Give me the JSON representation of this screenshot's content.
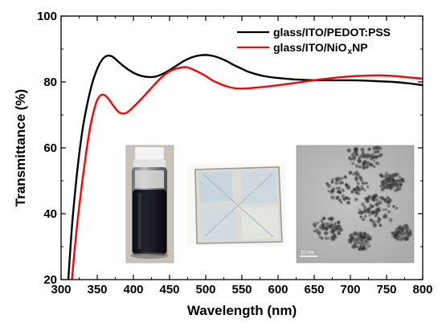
{
  "chart_data": {
    "type": "line",
    "xlabel": "Wavelength (nm)",
    "ylabel": "Transmittance (%)",
    "xlim": [
      300,
      800
    ],
    "ylim": [
      20,
      100
    ],
    "xticks": [
      300,
      350,
      400,
      450,
      500,
      550,
      600,
      650,
      700,
      750,
      800
    ],
    "yticks": [
      20,
      40,
      60,
      80,
      100
    ],
    "grid": false,
    "legend_position": "top-right",
    "series": [
      {
        "name": "glass/ITO/PEDOT:PSS",
        "color": "#000000",
        "x": [
          310,
          315,
          320,
          325,
          330,
          335,
          340,
          345,
          350,
          355,
          360,
          365,
          370,
          375,
          380,
          390,
          400,
          410,
          420,
          430,
          440,
          450,
          460,
          470,
          480,
          490,
          500,
          510,
          520,
          530,
          540,
          550,
          560,
          580,
          600,
          620,
          640,
          660,
          680,
          700,
          720,
          740,
          760,
          780,
          800
        ],
        "y": [
          20,
          36,
          48,
          58,
          66,
          72,
          77,
          81,
          84,
          86.2,
          87.5,
          88,
          87.8,
          87,
          86,
          84.2,
          82.8,
          81.9,
          81.5,
          81.6,
          82.4,
          83.6,
          85,
          86.4,
          87.4,
          88,
          88.2,
          87.9,
          87.2,
          86.2,
          85,
          84,
          83,
          81.8,
          81.2,
          80.8,
          80.6,
          80.5,
          80.5,
          80.5,
          80.4,
          80.2,
          80,
          79.6,
          79
        ]
      },
      {
        "name": "glass/ITO/NiO xNP",
        "color": "#ff0000",
        "x": [
          315,
          320,
          325,
          330,
          335,
          340,
          345,
          350,
          355,
          360,
          365,
          370,
          375,
          380,
          385,
          390,
          395,
          400,
          410,
          420,
          430,
          440,
          450,
          460,
          470,
          475,
          480,
          490,
          500,
          510,
          520,
          530,
          540,
          550,
          560,
          580,
          600,
          620,
          640,
          660,
          680,
          700,
          720,
          740,
          760,
          780,
          800
        ],
        "y": [
          20,
          32,
          42,
          51,
          59,
          66,
          71,
          74.5,
          76,
          76,
          75,
          73.5,
          72,
          70.8,
          70.4,
          70.6,
          71.4,
          72.4,
          74.6,
          77,
          79.4,
          81.6,
          83.2,
          84.1,
          84.5,
          84.4,
          84,
          83,
          81.8,
          80.4,
          79.4,
          78.6,
          78.1,
          78,
          78.1,
          78.5,
          79,
          79.6,
          80.2,
          80.8,
          81.3,
          81.7,
          81.9,
          82,
          81.8,
          81.4,
          81
        ]
      }
    ],
    "legend": {
      "entries": [
        {
          "main": "glass/ITO/PEDOT:PSS",
          "sub": "",
          "tail": "",
          "color": "#000000"
        },
        {
          "main": "glass/ITO/NiO",
          "sub": "x",
          "tail": "NP",
          "color": "#ff0000"
        }
      ]
    },
    "inset_images": [
      {
        "subject": "vial of dark NiOx nanoparticle dispersion"
      },
      {
        "subject": "NiOx-coated glass/ITO substrate"
      },
      {
        "subject": "TEM image of NiOx nanoparticles",
        "scale_bar_label": "20 nm"
      }
    ]
  }
}
